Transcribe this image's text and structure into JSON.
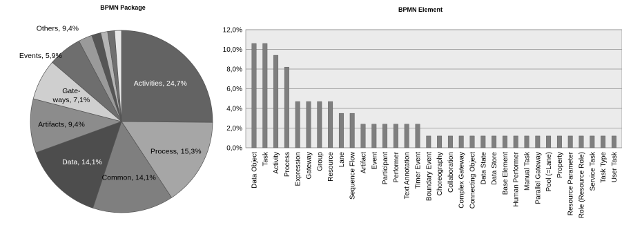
{
  "chart_data": [
    {
      "type": "pie",
      "title": "BPMN Package",
      "slices": [
        {
          "label": "Activities",
          "value": 24.7,
          "display": "Activities, 24,7%",
          "color": "#636363",
          "text_color": "#ffffff"
        },
        {
          "label": "Process",
          "value": 15.3,
          "display": "Process, 15,3%",
          "color": "#a6a6a6",
          "text_color": "#000000"
        },
        {
          "label": "Common",
          "value": 14.1,
          "display": "Common, 14,1%",
          "color": "#7f7f7f",
          "text_color": "#000000"
        },
        {
          "label": "Data",
          "value": 14.1,
          "display": "Data, 14,1%",
          "color": "#4d4d4d",
          "text_color": "#ffffff"
        },
        {
          "label": "Artifacts",
          "value": 9.4,
          "display": "Artifacts, 9,4%",
          "color": "#8c8c8c",
          "text_color": "#000000"
        },
        {
          "label": "Gateways",
          "value": 7.1,
          "display": "Gate-\nways, 7,1%",
          "color": "#cfcfcf",
          "text_color": "#000000"
        },
        {
          "label": "Events",
          "value": 5.9,
          "display": "Events, 5,9%",
          "color": "#6e6e6e",
          "text_color": "#000000"
        },
        {
          "label": "Others",
          "value": 9.4,
          "display": "Others, 9,4%",
          "color": "#d9d9d9",
          "text_color": "#000000"
        }
      ],
      "minor_slices": [
        {
          "value": 2.4,
          "color": "#9a9a9a"
        },
        {
          "value": 1.6,
          "color": "#555555"
        },
        {
          "value": 1.2,
          "color": "#b5b5b5"
        },
        {
          "value": 1.2,
          "color": "#707070"
        },
        {
          "value": 1.2,
          "color": "#e8e8e8"
        }
      ]
    },
    {
      "type": "bar",
      "title": "BPMN Element",
      "ylim": [
        0,
        12
      ],
      "yticks": [
        "0,0%",
        "2,0%",
        "4,0%",
        "6,0%",
        "8,0%",
        "10,0%",
        "12,0%"
      ],
      "grid": true,
      "bar_color": "#7f7f7f",
      "plot_bg": "#ebebeb",
      "categories": [
        "Data Object",
        "Task",
        "Activity",
        "Process",
        "Expression",
        "Gateway",
        "Group",
        "Resource",
        "Lane",
        "Sequence Flow",
        "Artifact",
        "Event",
        "Participant",
        "Performer",
        "Text Annotation",
        "Timer Event",
        "Boundary Event",
        "Choreography",
        "Collaboration",
        "Complex Gateway",
        "Connecting Object",
        "Data State",
        "Data Store",
        "Base Element",
        "Human Performer",
        "Manual Task",
        "Parallel Gateway",
        "Pool (=Lane)",
        "Property",
        "Resource Parameter",
        "Role (Resource Role)",
        "Service Task",
        "Task Type",
        "User Task"
      ],
      "values": [
        10.6,
        10.6,
        9.4,
        8.2,
        4.7,
        4.7,
        4.7,
        4.7,
        3.5,
        3.5,
        2.4,
        2.4,
        2.4,
        2.4,
        2.4,
        2.4,
        1.2,
        1.2,
        1.2,
        1.2,
        1.2,
        1.2,
        1.2,
        1.2,
        1.2,
        1.2,
        1.2,
        1.2,
        1.2,
        1.2,
        1.2,
        1.2,
        1.2,
        1.2
      ]
    }
  ]
}
